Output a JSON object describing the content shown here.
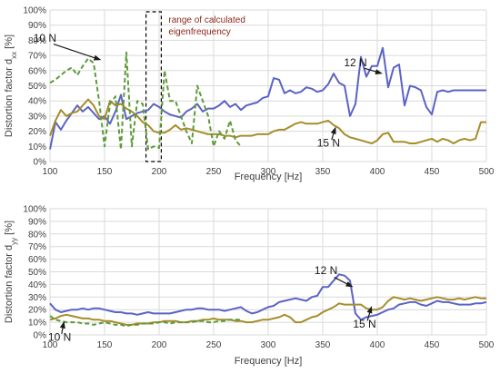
{
  "colors": {
    "n12": "#5b63c4",
    "n15": "#a68d2a",
    "n10": "#5e9a3a",
    "grid": "#d9d9d9",
    "box": "#000000"
  },
  "chart_data": [
    {
      "type": "line",
      "xlabel": "Frequency [Hz]",
      "ylabel_main": "Distortion factor d",
      "ylabel_sub": "xx",
      "ylabel_unit": " [%]",
      "xlim": [
        100,
        500
      ],
      "ylim": [
        0,
        100
      ],
      "xticks": [
        "100",
        "150",
        "200",
        "250",
        "300",
        "350",
        "400",
        "450",
        "500"
      ],
      "yticks": [
        "0%",
        "10%",
        "20%",
        "30%",
        "40%",
        "50%",
        "60%",
        "70%",
        "80%",
        "90%",
        "100%"
      ],
      "annotation_box": {
        "x_range": [
          188,
          202
        ],
        "label": "range of calculated eigenfrequency"
      },
      "annotations": [
        {
          "text": "10 N",
          "series": "n10",
          "at": [
            147,
            67
          ]
        },
        {
          "text": "12 N",
          "series": "n12",
          "at": [
            405,
            58
          ]
        },
        {
          "text": "15 N",
          "series": "n15",
          "at": [
            362,
            23
          ]
        }
      ],
      "series": [
        {
          "key": "n12",
          "dashed": false,
          "x": [
            100,
            105,
            110,
            115,
            120,
            125,
            130,
            135,
            140,
            145,
            150,
            155,
            160,
            165,
            170,
            175,
            180,
            185,
            190,
            195,
            200,
            205,
            210,
            215,
            220,
            225,
            230,
            235,
            240,
            245,
            250,
            255,
            260,
            265,
            270,
            275,
            280,
            285,
            290,
            295,
            300,
            305,
            310,
            315,
            320,
            325,
            330,
            335,
            340,
            345,
            350,
            355,
            360,
            365,
            370,
            375,
            380,
            385,
            390,
            395,
            400,
            405,
            410,
            415,
            420,
            425,
            430,
            435,
            440,
            445,
            450,
            455,
            460,
            465,
            470,
            475,
            480,
            485,
            490,
            495,
            500
          ],
          "y": [
            8,
            26,
            21,
            27,
            32,
            37,
            33,
            36,
            32,
            28,
            30,
            25,
            33,
            44,
            28,
            30,
            32,
            33,
            34,
            38,
            36,
            33,
            31,
            30,
            29,
            33,
            35,
            38,
            33,
            35,
            35,
            37,
            40,
            36,
            38,
            34,
            37,
            38,
            39,
            42,
            43,
            55,
            54,
            45,
            47,
            45,
            46,
            49,
            48,
            46,
            47,
            51,
            58,
            52,
            50,
            30,
            38,
            69,
            56,
            63,
            63,
            75,
            49,
            62,
            64,
            37,
            50,
            49,
            47,
            36,
            31,
            46,
            47,
            46,
            47,
            47,
            47,
            47,
            47,
            47,
            47
          ]
        },
        {
          "key": "n15",
          "dashed": false,
          "x": [
            100,
            105,
            110,
            115,
            120,
            125,
            130,
            135,
            140,
            145,
            150,
            155,
            160,
            165,
            170,
            175,
            180,
            185,
            190,
            195,
            200,
            205,
            210,
            215,
            220,
            225,
            230,
            235,
            240,
            245,
            250,
            255,
            260,
            265,
            270,
            275,
            280,
            285,
            290,
            295,
            300,
            305,
            310,
            315,
            320,
            325,
            330,
            335,
            340,
            345,
            350,
            355,
            360,
            365,
            370,
            375,
            380,
            385,
            390,
            395,
            400,
            405,
            410,
            415,
            420,
            425,
            430,
            435,
            440,
            445,
            450,
            455,
            460,
            465,
            470,
            475,
            480,
            485,
            490,
            495,
            500
          ],
          "y": [
            17,
            27,
            34,
            30,
            32,
            33,
            37,
            41,
            37,
            30,
            28,
            40,
            37,
            38,
            35,
            33,
            30,
            26,
            24,
            20,
            19,
            19,
            21,
            24,
            21,
            22,
            21,
            20,
            19,
            18,
            18,
            18,
            17,
            17,
            16,
            17,
            17,
            17,
            18,
            18,
            18,
            20,
            21,
            21,
            23,
            25,
            26,
            25,
            25,
            25,
            26,
            27,
            24,
            22,
            18,
            16,
            15,
            14,
            13,
            12,
            14,
            18,
            19,
            13,
            13,
            13,
            12,
            12,
            13,
            14,
            15,
            13,
            15,
            14,
            12,
            14,
            15,
            14,
            15,
            26,
            26
          ]
        },
        {
          "key": "n10",
          "dashed": true,
          "x": [
            100,
            105,
            110,
            115,
            120,
            125,
            130,
            135,
            140,
            145,
            150,
            155,
            160,
            165,
            170,
            175,
            180,
            185,
            190,
            195,
            200,
            205,
            210,
            215,
            220,
            225,
            230,
            235,
            240,
            245,
            250,
            255,
            260,
            265,
            270,
            275
          ],
          "y": [
            52,
            54,
            57,
            60,
            62,
            57,
            63,
            68,
            65,
            40,
            10,
            38,
            43,
            8,
            72,
            10,
            40,
            38,
            8,
            10,
            9,
            60,
            40,
            40,
            30,
            20,
            12,
            50,
            40,
            30,
            10,
            20,
            15,
            27,
            14,
            10
          ]
        }
      ]
    },
    {
      "type": "line",
      "xlabel": "Frequency [Hz]",
      "ylabel_main": "Distortion factor d",
      "ylabel_sub": "yy",
      "ylabel_unit": " [%]",
      "xlim": [
        100,
        500
      ],
      "ylim": [
        0,
        100
      ],
      "xticks": [
        "100",
        "150",
        "200",
        "250",
        "300",
        "350",
        "400",
        "450",
        "500"
      ],
      "yticks": [
        "0%",
        "10%",
        "20%",
        "30%",
        "40%",
        "50%",
        "60%",
        "70%",
        "80%",
        "90%",
        "100%"
      ],
      "annotations": [
        {
          "text": "10 N",
          "series": "n10",
          "at": [
            113,
            11
          ]
        },
        {
          "text": "12 N",
          "series": "n12",
          "at": [
            378,
            38
          ]
        },
        {
          "text": "15 N",
          "series": "n15",
          "at": [
            395,
            23
          ]
        }
      ],
      "series": [
        {
          "key": "n12",
          "dashed": false,
          "x": [
            100,
            105,
            110,
            115,
            120,
            125,
            130,
            135,
            140,
            145,
            150,
            155,
            160,
            165,
            170,
            175,
            180,
            185,
            190,
            195,
            200,
            205,
            210,
            215,
            220,
            225,
            230,
            235,
            240,
            245,
            250,
            255,
            260,
            265,
            270,
            275,
            280,
            285,
            290,
            295,
            300,
            305,
            310,
            315,
            320,
            325,
            330,
            335,
            340,
            345,
            350,
            355,
            360,
            365,
            370,
            375,
            380,
            385,
            390,
            395,
            400,
            405,
            410,
            415,
            420,
            425,
            430,
            435,
            440,
            445,
            450,
            455,
            460,
            465,
            470,
            475,
            480,
            485,
            490,
            495,
            500
          ],
          "y": [
            25,
            20,
            18,
            19,
            20,
            20,
            21,
            20,
            21,
            21,
            20,
            19,
            18,
            18,
            17,
            17,
            16,
            17,
            18,
            17,
            17,
            17,
            17,
            18,
            19,
            20,
            20,
            21,
            21,
            20,
            20,
            20,
            19,
            20,
            21,
            22,
            19,
            17,
            18,
            20,
            22,
            23,
            26,
            27,
            28,
            29,
            28,
            27,
            30,
            31,
            38,
            38,
            43,
            48,
            47,
            43,
            17,
            12,
            14,
            15,
            16,
            18,
            20,
            21,
            24,
            25,
            26,
            26,
            24,
            23,
            25,
            27,
            26,
            26,
            25,
            24,
            24,
            24,
            25,
            25,
            26
          ]
        },
        {
          "key": "n15",
          "dashed": false,
          "x": [
            100,
            105,
            110,
            115,
            120,
            125,
            130,
            135,
            140,
            145,
            150,
            155,
            160,
            165,
            170,
            175,
            180,
            185,
            190,
            195,
            200,
            205,
            210,
            215,
            220,
            225,
            230,
            235,
            240,
            245,
            250,
            255,
            260,
            265,
            270,
            275,
            280,
            285,
            290,
            295,
            300,
            305,
            310,
            315,
            320,
            325,
            330,
            335,
            340,
            345,
            350,
            355,
            360,
            365,
            370,
            375,
            380,
            385,
            390,
            395,
            400,
            405,
            410,
            415,
            420,
            425,
            430,
            435,
            440,
            445,
            450,
            455,
            460,
            465,
            470,
            475,
            480,
            485,
            490,
            495,
            500
          ],
          "y": [
            12,
            13,
            15,
            16,
            15,
            14,
            13,
            13,
            12,
            12,
            11,
            11,
            10,
            9,
            8,
            8,
            9,
            9,
            9,
            10,
            10,
            11,
            11,
            11,
            10,
            10,
            11,
            11,
            12,
            12,
            13,
            12,
            12,
            12,
            11,
            11,
            10,
            10,
            11,
            12,
            12,
            13,
            14,
            16,
            14,
            10,
            10,
            12,
            14,
            15,
            18,
            20,
            22,
            25,
            24,
            24,
            24,
            24,
            21,
            20,
            20,
            22,
            27,
            30,
            29,
            28,
            29,
            28,
            27,
            28,
            29,
            30,
            29,
            28,
            28,
            29,
            28,
            29,
            30,
            29,
            29
          ]
        },
        {
          "key": "n10",
          "dashed": true,
          "x": [
            100,
            105,
            110,
            115,
            120,
            125,
            130,
            135,
            140,
            145,
            150,
            155,
            160,
            165,
            170,
            175,
            180,
            185,
            190,
            195,
            200,
            205,
            210,
            215,
            220,
            225,
            230,
            235,
            240,
            245,
            250,
            255,
            260,
            265,
            270,
            275
          ],
          "y": [
            15,
            12,
            11,
            10,
            10,
            10,
            9,
            9,
            8,
            9,
            10,
            9,
            8,
            8,
            7,
            8,
            8,
            9,
            9,
            9,
            10,
            10,
            9,
            10,
            10,
            10,
            10,
            11,
            11,
            10,
            10,
            11,
            11,
            12,
            12,
            12
          ]
        }
      ]
    }
  ]
}
